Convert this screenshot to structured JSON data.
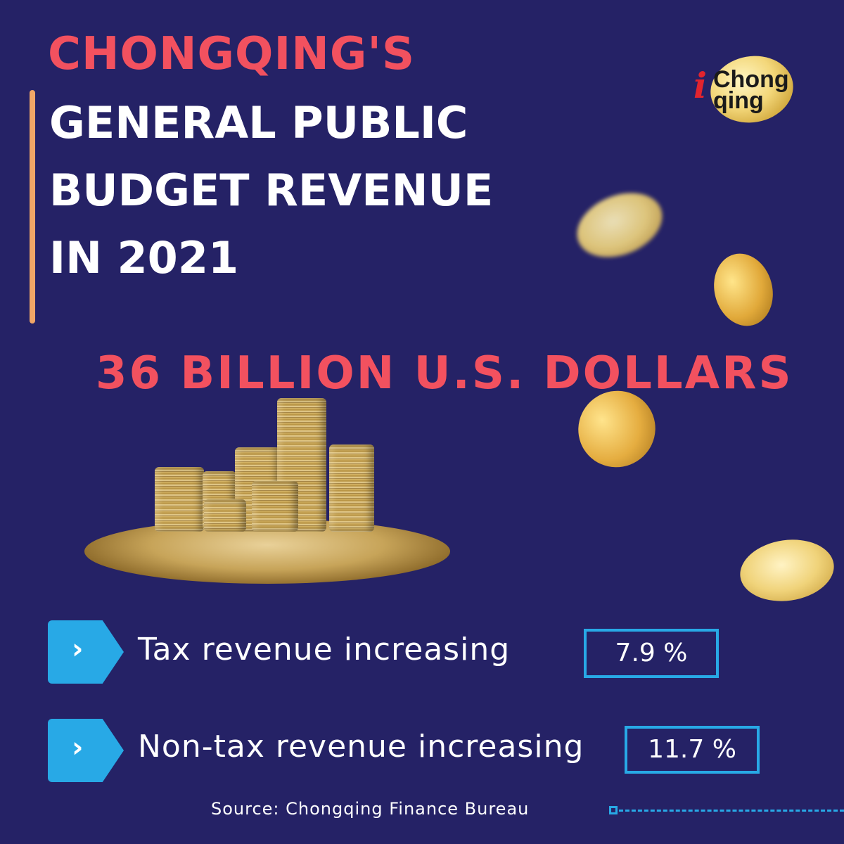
{
  "title": {
    "line1": "CHONGQING'S",
    "line2": "GENERAL PUBLIC",
    "line3": "BUDGET REVENUE",
    "line4": "IN 2021"
  },
  "headline": "36 BILLION U.S. DOLLARS",
  "logo": {
    "prefix": "i",
    "word1": "Chong",
    "word2": "qing"
  },
  "rows": [
    {
      "label": "Tax revenue increasing",
      "value": "7.9 %",
      "icon": "chevron-right-icon"
    },
    {
      "label": "Non-tax revenue increasing",
      "value": "11.7 %",
      "icon": "chevron-right-icon"
    }
  ],
  "source": "Source: Chongqing Finance Bureau",
  "colors": {
    "background": "#252266",
    "accent_red": "#f2515f",
    "accent_blue": "#28a9e6",
    "accent_orange": "#f0a667"
  }
}
